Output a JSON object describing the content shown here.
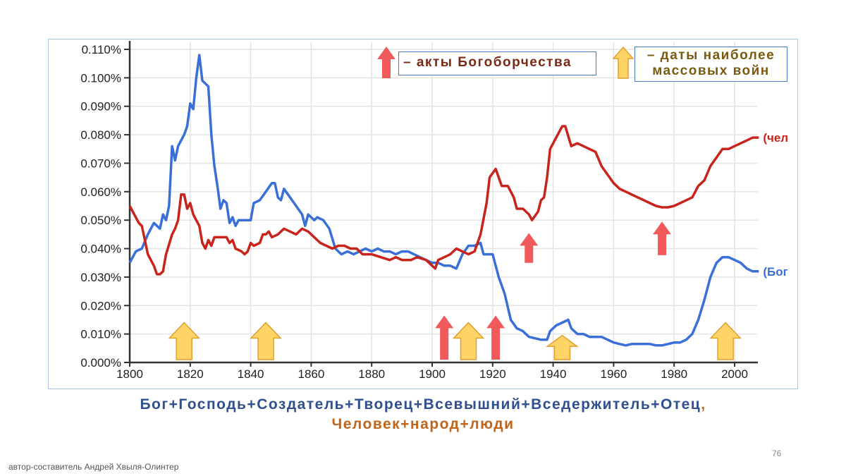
{
  "chart_data": {
    "type": "line",
    "title": "",
    "xlabel": "",
    "ylabel": "",
    "xlim": [
      1800,
      2008
    ],
    "ylim": [
      0,
      0.11
    ],
    "grid": true,
    "x_ticks": [
      "1800",
      "1820",
      "1840",
      "1860",
      "1880",
      "1900",
      "1920",
      "1940",
      "1960",
      "1980",
      "2000"
    ],
    "y_ticks": [
      "0.000%",
      "0.010%",
      "0.020%",
      "0.030%",
      "0.040%",
      "0.050%",
      "0.060%",
      "0.070%",
      "0.080%",
      "0.090%",
      "0.100%",
      "0.110%"
    ],
    "series": [
      {
        "name": "Бог",
        "end_label": "(Бог",
        "color": "#3a6fd8",
        "points": [
          [
            1800,
            0.035
          ],
          [
            1802,
            0.039
          ],
          [
            1804,
            0.04
          ],
          [
            1806,
            0.045
          ],
          [
            1808,
            0.049
          ],
          [
            1810,
            0.047
          ],
          [
            1811,
            0.052
          ],
          [
            1812,
            0.05
          ],
          [
            1813,
            0.055
          ],
          [
            1814,
            0.076
          ],
          [
            1815,
            0.071
          ],
          [
            1816,
            0.076
          ],
          [
            1818,
            0.08
          ],
          [
            1819,
            0.083
          ],
          [
            1820,
            0.091
          ],
          [
            1821,
            0.089
          ],
          [
            1822,
            0.1
          ],
          [
            1823,
            0.108
          ],
          [
            1824,
            0.099
          ],
          [
            1826,
            0.097
          ],
          [
            1827,
            0.08
          ],
          [
            1828,
            0.069
          ],
          [
            1829,
            0.062
          ],
          [
            1830,
            0.054
          ],
          [
            1831,
            0.057
          ],
          [
            1832,
            0.056
          ],
          [
            1833,
            0.049
          ],
          [
            1834,
            0.051
          ],
          [
            1835,
            0.048
          ],
          [
            1836,
            0.05
          ],
          [
            1838,
            0.05
          ],
          [
            1840,
            0.05
          ],
          [
            1841,
            0.056
          ],
          [
            1843,
            0.057
          ],
          [
            1845,
            0.06
          ],
          [
            1847,
            0.063
          ],
          [
            1848,
            0.063
          ],
          [
            1849,
            0.058
          ],
          [
            1850,
            0.057
          ],
          [
            1851,
            0.061
          ],
          [
            1853,
            0.058
          ],
          [
            1855,
            0.055
          ],
          [
            1857,
            0.052
          ],
          [
            1858,
            0.048
          ],
          [
            1859,
            0.052
          ],
          [
            1860,
            0.051
          ],
          [
            1861,
            0.05
          ],
          [
            1862,
            0.051
          ],
          [
            1864,
            0.05
          ],
          [
            1866,
            0.047
          ],
          [
            1868,
            0.04
          ],
          [
            1870,
            0.038
          ],
          [
            1872,
            0.039
          ],
          [
            1874,
            0.038
          ],
          [
            1876,
            0.039
          ],
          [
            1878,
            0.04
          ],
          [
            1880,
            0.039
          ],
          [
            1882,
            0.04
          ],
          [
            1884,
            0.039
          ],
          [
            1886,
            0.039
          ],
          [
            1888,
            0.038
          ],
          [
            1890,
            0.039
          ],
          [
            1892,
            0.039
          ],
          [
            1894,
            0.038
          ],
          [
            1896,
            0.037
          ],
          [
            1898,
            0.036
          ],
          [
            1900,
            0.035
          ],
          [
            1902,
            0.035
          ],
          [
            1904,
            0.034
          ],
          [
            1906,
            0.034
          ],
          [
            1908,
            0.033
          ],
          [
            1910,
            0.038
          ],
          [
            1912,
            0.041
          ],
          [
            1914,
            0.041
          ],
          [
            1916,
            0.042
          ],
          [
            1917,
            0.038
          ],
          [
            1919,
            0.038
          ],
          [
            1920,
            0.038
          ],
          [
            1922,
            0.03
          ],
          [
            1924,
            0.024
          ],
          [
            1926,
            0.015
          ],
          [
            1928,
            0.012
          ],
          [
            1930,
            0.011
          ],
          [
            1932,
            0.009
          ],
          [
            1934,
            0.0085
          ],
          [
            1936,
            0.008
          ],
          [
            1938,
            0.008
          ],
          [
            1939,
            0.011
          ],
          [
            1941,
            0.013
          ],
          [
            1943,
            0.014
          ],
          [
            1945,
            0.015
          ],
          [
            1946,
            0.012
          ],
          [
            1948,
            0.01
          ],
          [
            1950,
            0.01
          ],
          [
            1952,
            0.009
          ],
          [
            1954,
            0.009
          ],
          [
            1956,
            0.009
          ],
          [
            1958,
            0.008
          ],
          [
            1960,
            0.007
          ],
          [
            1962,
            0.0065
          ],
          [
            1964,
            0.006
          ],
          [
            1966,
            0.0065
          ],
          [
            1968,
            0.0065
          ],
          [
            1970,
            0.0065
          ],
          [
            1972,
            0.0065
          ],
          [
            1974,
            0.006
          ],
          [
            1976,
            0.006
          ],
          [
            1978,
            0.0065
          ],
          [
            1980,
            0.007
          ],
          [
            1982,
            0.007
          ],
          [
            1984,
            0.008
          ],
          [
            1986,
            0.01
          ],
          [
            1988,
            0.015
          ],
          [
            1990,
            0.022
          ],
          [
            1992,
            0.03
          ],
          [
            1994,
            0.035
          ],
          [
            1996,
            0.037
          ],
          [
            1998,
            0.037
          ],
          [
            2000,
            0.036
          ],
          [
            2002,
            0.035
          ],
          [
            2004,
            0.033
          ],
          [
            2006,
            0.032
          ],
          [
            2008,
            0.032
          ]
        ]
      },
      {
        "name": "Человек",
        "end_label": "(чел",
        "color": "#c8241c",
        "points": [
          [
            1800,
            0.055
          ],
          [
            1802,
            0.051
          ],
          [
            1803,
            0.049
          ],
          [
            1804,
            0.048
          ],
          [
            1806,
            0.038
          ],
          [
            1808,
            0.034
          ],
          [
            1809,
            0.031
          ],
          [
            1810,
            0.031
          ],
          [
            1811,
            0.032
          ],
          [
            1812,
            0.038
          ],
          [
            1814,
            0.045
          ],
          [
            1815,
            0.047
          ],
          [
            1816,
            0.05
          ],
          [
            1817,
            0.059
          ],
          [
            1818,
            0.059
          ],
          [
            1819,
            0.054
          ],
          [
            1820,
            0.056
          ],
          [
            1821,
            0.052
          ],
          [
            1822,
            0.05
          ],
          [
            1823,
            0.048
          ],
          [
            1824,
            0.042
          ],
          [
            1825,
            0.04
          ],
          [
            1826,
            0.043
          ],
          [
            1827,
            0.041
          ],
          [
            1828,
            0.044
          ],
          [
            1830,
            0.044
          ],
          [
            1832,
            0.044
          ],
          [
            1833,
            0.042
          ],
          [
            1834,
            0.043
          ],
          [
            1835,
            0.04
          ],
          [
            1837,
            0.039
          ],
          [
            1838,
            0.038
          ],
          [
            1839,
            0.039
          ],
          [
            1840,
            0.042
          ],
          [
            1841,
            0.041
          ],
          [
            1843,
            0.042
          ],
          [
            1844,
            0.045
          ],
          [
            1845,
            0.045
          ],
          [
            1846,
            0.046
          ],
          [
            1847,
            0.044
          ],
          [
            1849,
            0.045
          ],
          [
            1851,
            0.047
          ],
          [
            1853,
            0.046
          ],
          [
            1855,
            0.045
          ],
          [
            1857,
            0.047
          ],
          [
            1859,
            0.046
          ],
          [
            1861,
            0.044
          ],
          [
            1863,
            0.042
          ],
          [
            1865,
            0.041
          ],
          [
            1867,
            0.04
          ],
          [
            1869,
            0.041
          ],
          [
            1871,
            0.041
          ],
          [
            1873,
            0.04
          ],
          [
            1875,
            0.04
          ],
          [
            1877,
            0.038
          ],
          [
            1880,
            0.038
          ],
          [
            1883,
            0.037
          ],
          [
            1886,
            0.036
          ],
          [
            1888,
            0.037
          ],
          [
            1890,
            0.036
          ],
          [
            1893,
            0.036
          ],
          [
            1895,
            0.037
          ],
          [
            1898,
            0.036
          ],
          [
            1900,
            0.034
          ],
          [
            1901,
            0.033
          ],
          [
            1902,
            0.036
          ],
          [
            1904,
            0.037
          ],
          [
            1906,
            0.038
          ],
          [
            1908,
            0.04
          ],
          [
            1910,
            0.039
          ],
          [
            1912,
            0.038
          ],
          [
            1914,
            0.039
          ],
          [
            1916,
            0.045
          ],
          [
            1918,
            0.056
          ],
          [
            1919,
            0.065
          ],
          [
            1921,
            0.068
          ],
          [
            1923,
            0.062
          ],
          [
            1925,
            0.062
          ],
          [
            1927,
            0.058
          ],
          [
            1928,
            0.054
          ],
          [
            1930,
            0.054
          ],
          [
            1932,
            0.052
          ],
          [
            1933,
            0.05
          ],
          [
            1935,
            0.053
          ],
          [
            1936,
            0.057
          ],
          [
            1937,
            0.058
          ],
          [
            1938,
            0.065
          ],
          [
            1939,
            0.075
          ],
          [
            1941,
            0.079
          ],
          [
            1943,
            0.083
          ],
          [
            1944,
            0.083
          ],
          [
            1946,
            0.076
          ],
          [
            1948,
            0.077
          ],
          [
            1950,
            0.076
          ],
          [
            1952,
            0.075
          ],
          [
            1954,
            0.074
          ],
          [
            1956,
            0.069
          ],
          [
            1958,
            0.066
          ],
          [
            1960,
            0.063
          ],
          [
            1962,
            0.061
          ],
          [
            1964,
            0.06
          ],
          [
            1966,
            0.059
          ],
          [
            1968,
            0.058
          ],
          [
            1970,
            0.057
          ],
          [
            1972,
            0.056
          ],
          [
            1974,
            0.055
          ],
          [
            1976,
            0.0545
          ],
          [
            1978,
            0.0545
          ],
          [
            1980,
            0.055
          ],
          [
            1982,
            0.056
          ],
          [
            1984,
            0.057
          ],
          [
            1986,
            0.058
          ],
          [
            1988,
            0.062
          ],
          [
            1990,
            0.064
          ],
          [
            1992,
            0.069
          ],
          [
            1994,
            0.072
          ],
          [
            1996,
            0.075
          ],
          [
            1998,
            0.075
          ],
          [
            2000,
            0.076
          ],
          [
            2002,
            0.077
          ],
          [
            2004,
            0.078
          ],
          [
            2006,
            0.079
          ],
          [
            2008,
            0.079
          ]
        ]
      }
    ],
    "annotations": {
      "theomachy_arrows": {
        "color": "#f05a5a",
        "items": [
          {
            "year": 1904,
            "from": 0.001,
            "to": 0.0165
          },
          {
            "year": 1921,
            "from": 0.001,
            "to": 0.0165
          },
          {
            "year": 1932,
            "from": 0.035,
            "to": 0.0455
          },
          {
            "year": 1976,
            "from": 0.0377,
            "to": 0.0495
          }
        ]
      },
      "war_arrows": {
        "color": "#ffd466",
        "items": [
          {
            "year": 1818,
            "from": 0.001,
            "to": 0.014
          },
          {
            "year": 1845,
            "from": 0.001,
            "to": 0.014
          },
          {
            "year": 1912,
            "from": 0.001,
            "to": 0.014
          },
          {
            "year": 1943,
            "from": 0.001,
            "to": 0.0095
          },
          {
            "year": 1997,
            "from": 0.001,
            "to": 0.014
          }
        ]
      }
    },
    "legend": [
      {
        "symbol": "red-arrow",
        "label": "– акты  Богоборчества"
      },
      {
        "symbol": "yellow-arrow",
        "label_line1": "– даты  наиболее",
        "label_line2": "массовых  войн"
      }
    ]
  },
  "caption": {
    "line1": "Бог+Господь+Создатель+Творец+Всевышний+Вседержитель+Отец",
    "comma": ",",
    "line2": "Человек+народ+люди"
  },
  "footer": {
    "author": "автор-составитель Андрей Хвыля-Олинтер",
    "page": "76"
  }
}
